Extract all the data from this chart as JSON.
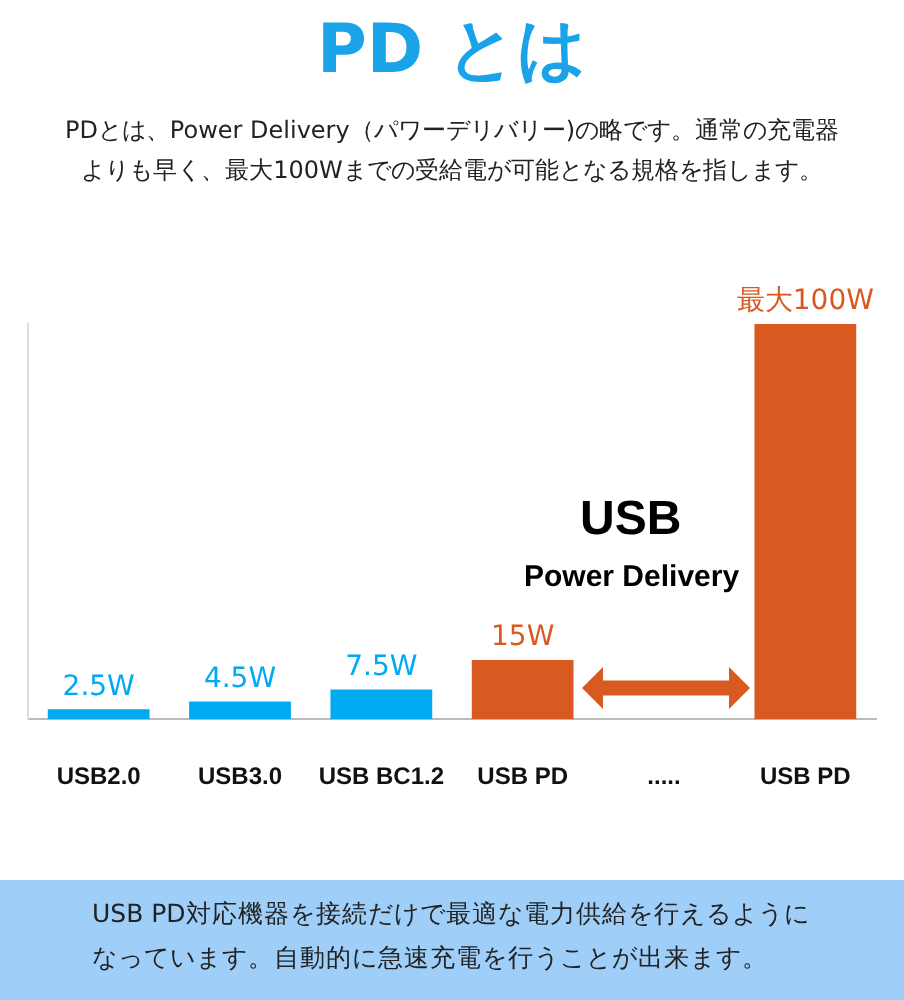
{
  "chart_data": {
    "type": "bar",
    "title": "PD とは",
    "subtitle": "PDとは、Power Delivery（パワーデリバリー)の略です。通常の充電器よりも早く、最大100Wまでの受給電が可能となる規格を指します。",
    "categories": [
      "USB2.0",
      "USB3.0",
      "USB BC1.2",
      "USB PD",
      ".....",
      "USB PD"
    ],
    "values": [
      2.5,
      4.5,
      7.5,
      15,
      null,
      100
    ],
    "colors": [
      "#00aaf0",
      "#00aaf0",
      "#00aaf0",
      "#d85a20",
      "#d85a20",
      "#d85a20"
    ],
    "value_labels": [
      "2.5W",
      "4.5W",
      "7.5W",
      "15W",
      null,
      "最大100W"
    ],
    "annotations": [
      "USB",
      "Power Delivery",
      "USB PD対応機器を接続だけで最適な電力供給を行えるようになっています。自動的に急速充電を行うことが出来ます。"
    ],
    "grid": false,
    "legend": false,
    "tick_labels": "x"
  }
}
